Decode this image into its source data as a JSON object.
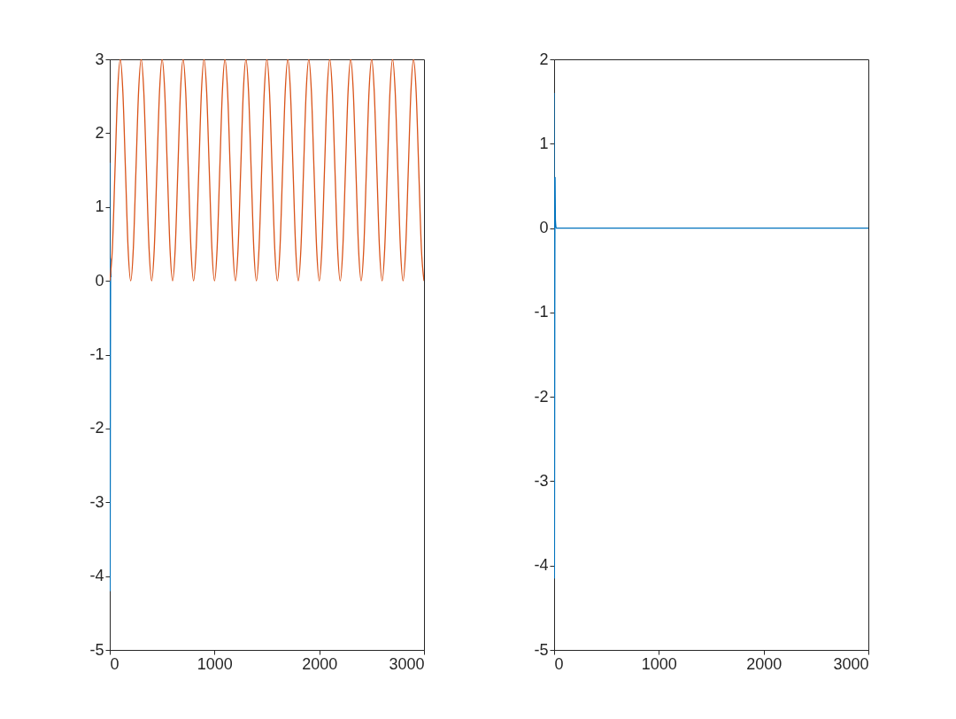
{
  "chart_data": [
    {
      "type": "line",
      "xlim": [
        0,
        3000
      ],
      "xticks": [
        0,
        1000,
        2000,
        3000
      ],
      "ylim": [
        -5,
        3
      ],
      "yticks": [
        -5,
        -4,
        -3,
        -2,
        -1,
        0,
        1,
        2,
        3
      ],
      "series": [
        {
          "color": "#0072bd",
          "x": [
            0,
            3,
            6,
            9,
            12
          ],
          "values": [
            1.6,
            -4.2,
            -1.2,
            0.3,
            0.05
          ]
        },
        {
          "color": "#d95319",
          "x": [
            0,
            25,
            50,
            75,
            100,
            125,
            150,
            175,
            200,
            225,
            250,
            275,
            300,
            325,
            350,
            375,
            400,
            425,
            450,
            475,
            500,
            525,
            550,
            575,
            600,
            625,
            650,
            675,
            700,
            725,
            750,
            775,
            800,
            825,
            850,
            875,
            900,
            925,
            950,
            975,
            1000,
            1025,
            1050,
            1075,
            1100,
            1125,
            1150,
            1175,
            1200,
            1225,
            1250,
            1275,
            1300,
            1325,
            1350,
            1375,
            1400,
            1425,
            1450,
            1475,
            1500,
            1525,
            1550,
            1575,
            1600,
            1625,
            1650,
            1675,
            1700,
            1725,
            1750,
            1775,
            1800,
            1825,
            1850,
            1875,
            1900,
            1925,
            1950,
            1975,
            2000,
            2025,
            2050,
            2075,
            2100,
            2125,
            2150,
            2175,
            2200,
            2225,
            2250,
            2275,
            2300,
            2325,
            2350,
            2375,
            2400,
            2425,
            2450,
            2475,
            2500,
            2525,
            2550,
            2575,
            2600,
            2625,
            2650,
            2675,
            2700,
            2725,
            2750,
            2775,
            2800,
            2825,
            2850,
            2875,
            2900,
            2925,
            2950,
            2975,
            3000
          ],
          "values": [
            0,
            0.44,
            1.5,
            2.56,
            3,
            2.56,
            1.5,
            0.44,
            0,
            0.44,
            1.5,
            2.56,
            3,
            2.56,
            1.5,
            0.44,
            0,
            0.44,
            1.5,
            2.56,
            3,
            2.56,
            1.5,
            0.44,
            0,
            0.44,
            1.5,
            2.56,
            3,
            2.56,
            1.5,
            0.44,
            0,
            0.44,
            1.5,
            2.56,
            3,
            2.56,
            1.5,
            0.44,
            0,
            0.44,
            1.5,
            2.56,
            3,
            2.56,
            1.5,
            0.44,
            0,
            0.44,
            1.5,
            2.56,
            3,
            2.56,
            1.5,
            0.44,
            0,
            0.44,
            1.5,
            2.56,
            3,
            2.56,
            1.5,
            0.44,
            0,
            0.44,
            1.5,
            2.56,
            3,
            2.56,
            1.5,
            0.44,
            0,
            0.44,
            1.5,
            2.56,
            3,
            2.56,
            1.5,
            0.44,
            0,
            0.44,
            1.5,
            2.56,
            3,
            2.56,
            1.5,
            0.44,
            0,
            0.44,
            1.5,
            2.56,
            3,
            2.56,
            1.5,
            0.44,
            0,
            0.44,
            1.5,
            2.56,
            3,
            2.56,
            1.5,
            0.44,
            0,
            0.44,
            1.5,
            2.56,
            3,
            2.56,
            1.5,
            0.44,
            0,
            0.44,
            1.5,
            2.56,
            3,
            2.56,
            1.5,
            0.44,
            0
          ]
        }
      ]
    },
    {
      "type": "line",
      "xlim": [
        0,
        3000
      ],
      "xticks": [
        0,
        1000,
        2000,
        3000
      ],
      "ylim": [
        -5,
        2
      ],
      "yticks": [
        -5,
        -4,
        -3,
        -2,
        -1,
        0,
        1,
        2
      ],
      "series": [
        {
          "color": "#0072bd",
          "x": [
            0,
            3,
            6,
            9,
            12,
            20,
            50,
            100,
            500,
            1000,
            1500,
            2000,
            2500,
            3000
          ],
          "values": [
            1.6,
            -4.15,
            -1.2,
            0.6,
            0.1,
            0,
            0,
            0,
            0,
            0,
            0,
            0,
            0,
            0
          ]
        }
      ]
    }
  ]
}
